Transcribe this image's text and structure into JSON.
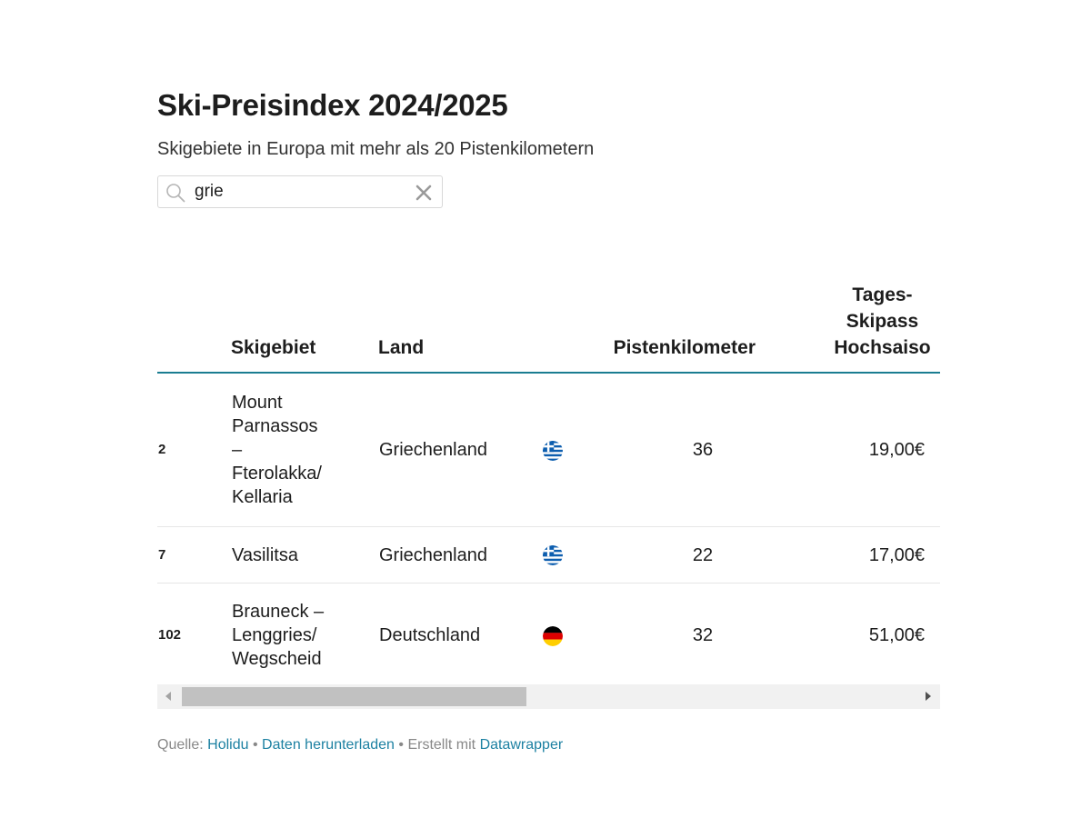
{
  "header": {
    "title": "Ski-Preisindex 2024/2025",
    "subtitle": "Skigebiete in Europa mit mehr als 20 Pistenkilometern"
  },
  "search": {
    "value": "grie",
    "placeholder": ""
  },
  "table": {
    "columns": {
      "rank": "",
      "skigebiet": "Skigebiet",
      "land": "Land",
      "flag": "",
      "pistenkilometer": "Pistenkilometer",
      "price_line1": "Tages-",
      "price_line2": "Skipass",
      "price_line3": "Hochsaiso"
    },
    "rows": [
      {
        "rank": "2",
        "skigebiet": [
          "Mount",
          "Parnassos",
          "–",
          "Fterolakka/",
          "Kellaria"
        ],
        "land": "Griechenland",
        "flag_icon": "greece-flag-icon",
        "pistenkilometer": "36",
        "price": "19,00€"
      },
      {
        "rank": "7",
        "skigebiet": [
          "Vasilitsa"
        ],
        "land": "Griechenland",
        "flag_icon": "greece-flag-icon",
        "pistenkilometer": "22",
        "price": "17,00€"
      },
      {
        "rank": "102",
        "skigebiet": [
          "Brauneck –",
          "Lenggries/",
          "Wegscheid"
        ],
        "land": "Deutschland",
        "flag_icon": "germany-flag-icon",
        "pistenkilometer": "32",
        "price": "51,00€"
      }
    ]
  },
  "scrollbar": {
    "position_fraction": 0,
    "visible_fraction": 0.47
  },
  "footer": {
    "source_label": "Quelle:",
    "source_link": "Holidu",
    "download_link": "Daten herunterladen",
    "created_label": "Erstellt mit",
    "created_link": "Datawrapper"
  },
  "colors": {
    "accent_rule": "#1a7d91",
    "link": "#1d81a2"
  }
}
